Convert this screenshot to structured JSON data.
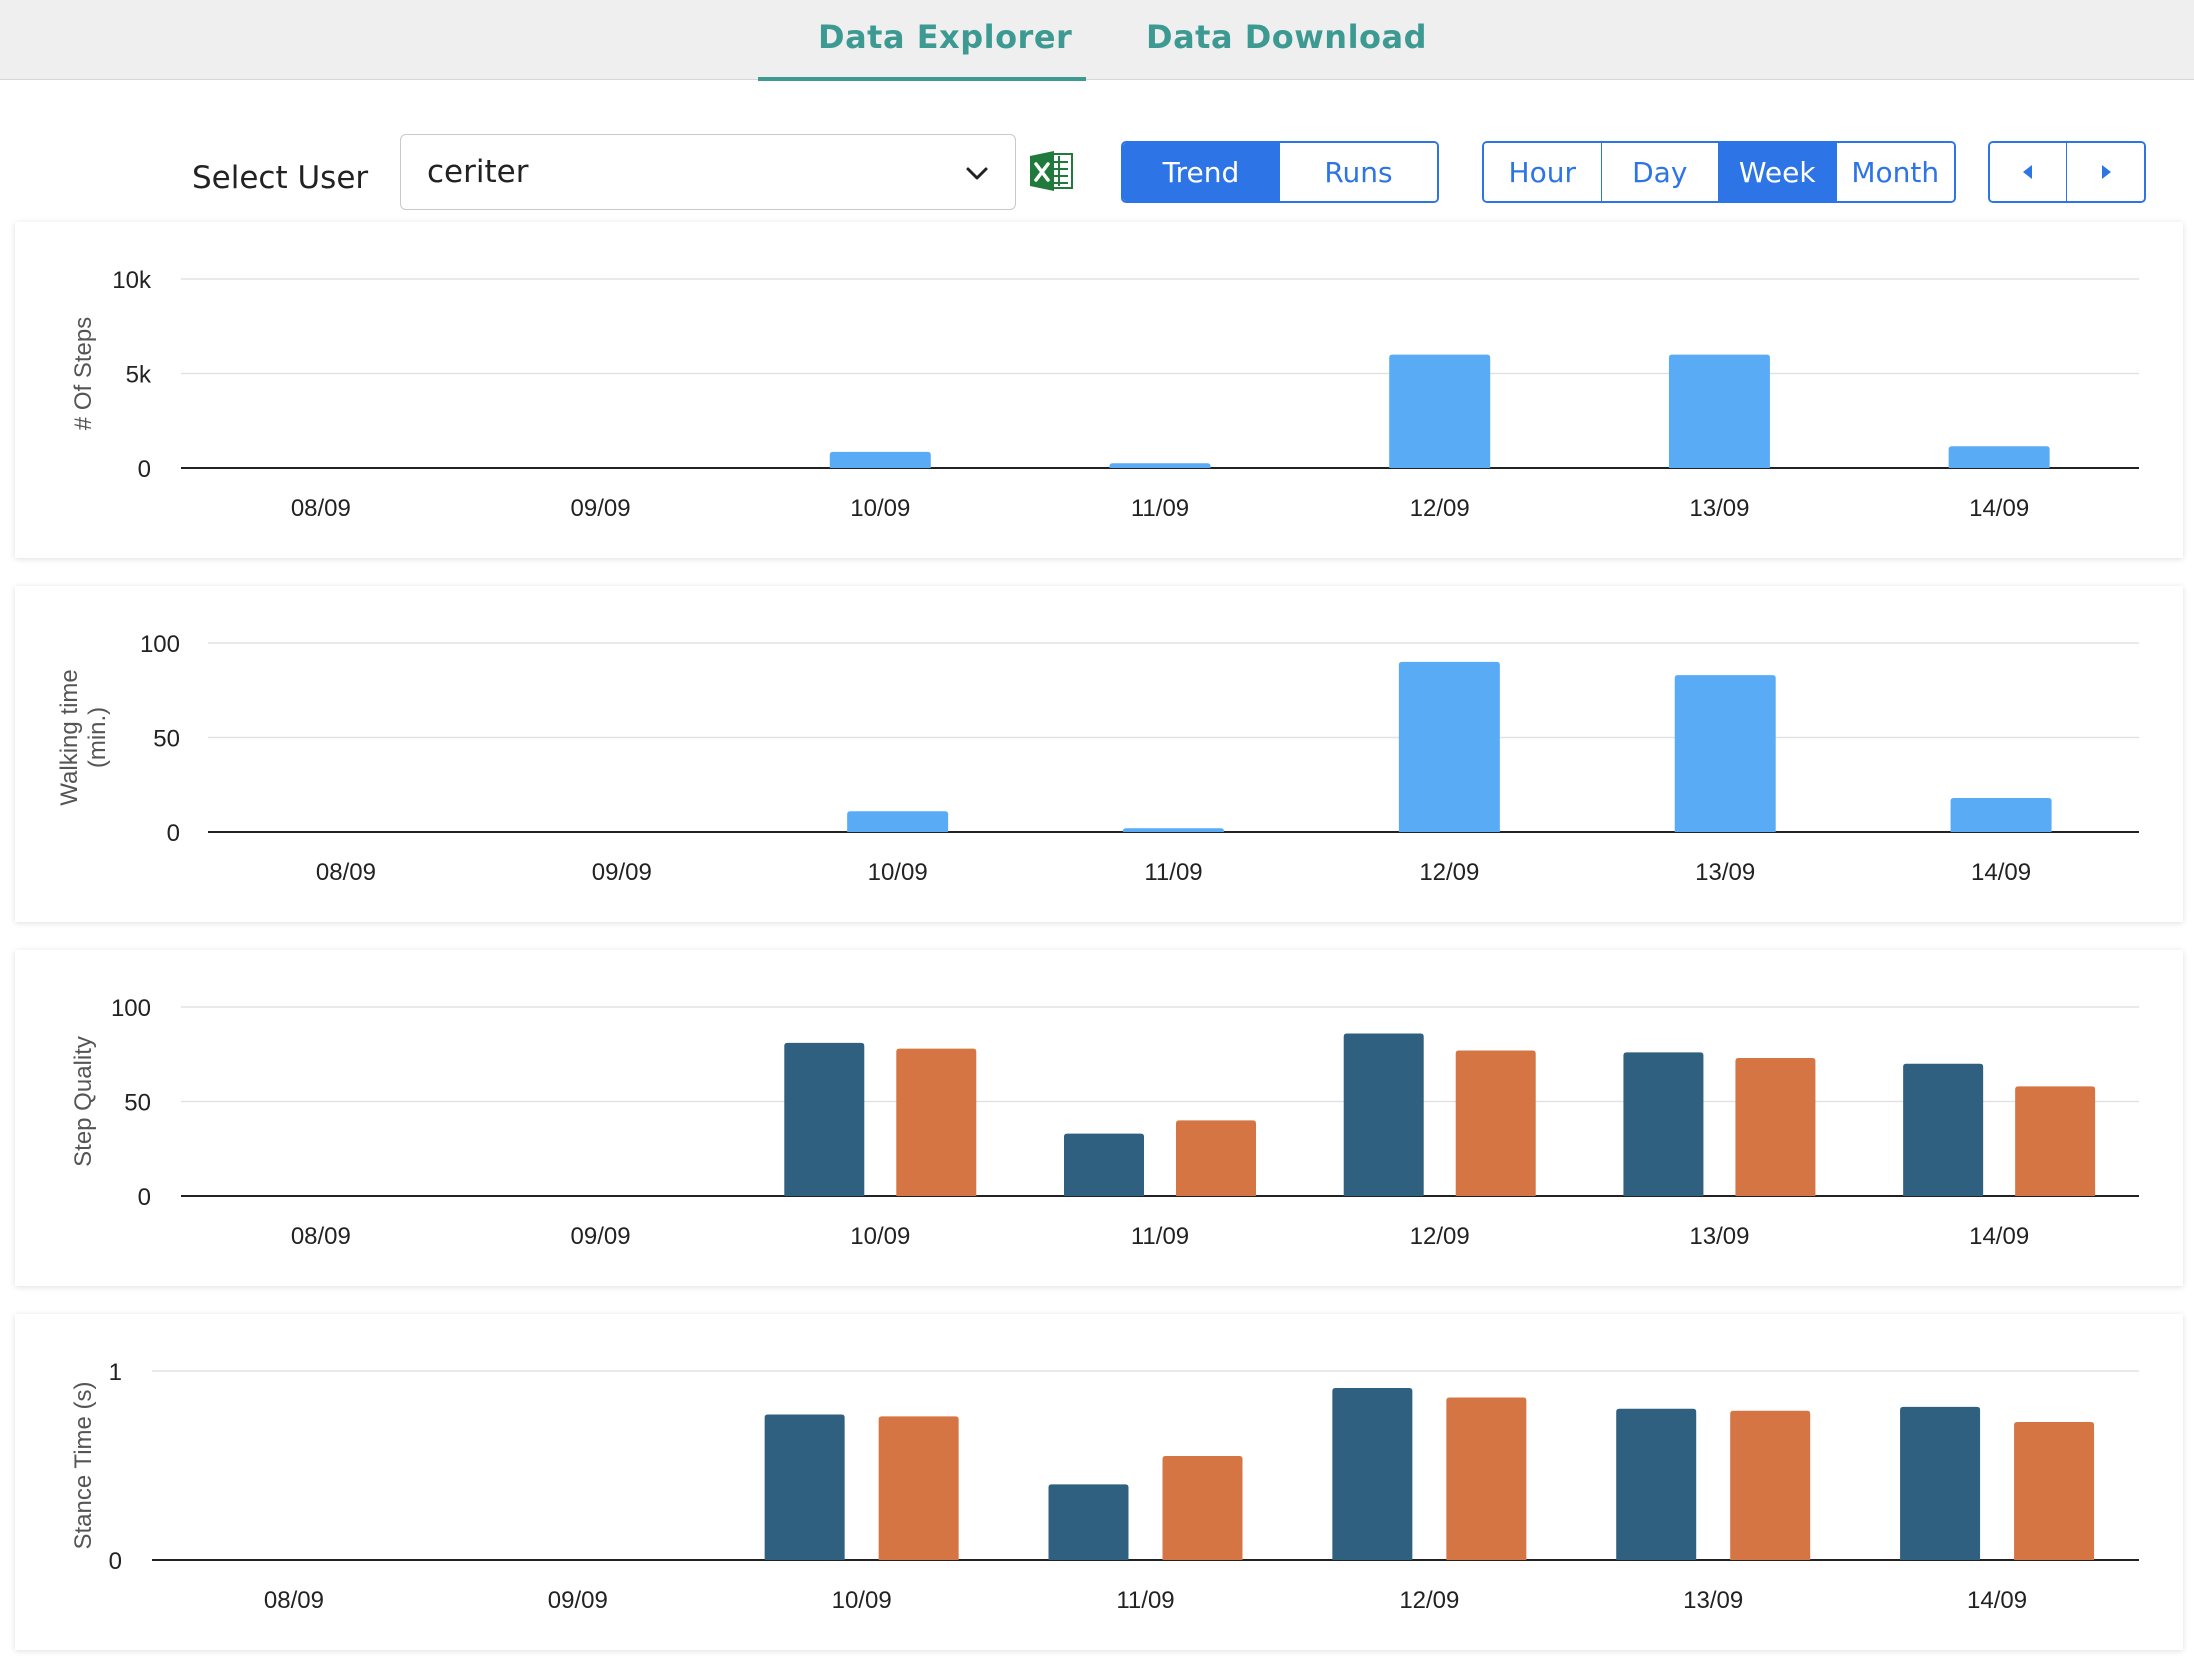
{
  "tabs": [
    {
      "label": "Data Explorer",
      "active": true
    },
    {
      "label": "Data Download",
      "active": false
    }
  ],
  "controls": {
    "select_user_label": "Select User",
    "selected_user": "ceriter",
    "mode_buttons": [
      {
        "label": "Trend",
        "active": true
      },
      {
        "label": "Runs",
        "active": false
      }
    ],
    "period_buttons": [
      {
        "label": "Hour",
        "active": false
      },
      {
        "label": "Day",
        "active": false
      },
      {
        "label": "Week",
        "active": true
      },
      {
        "label": "Month",
        "active": false
      }
    ]
  },
  "colors": {
    "accent": "#2d74e6",
    "tab": "#3d9a92",
    "bar_light": "#5aabf5",
    "bar_dark": "#30607f",
    "bar_orange": "#d57544"
  },
  "chart_data": [
    {
      "type": "bar",
      "ylabel": [
        "# Of Steps"
      ],
      "categories": [
        "08/09",
        "09/09",
        "10/09",
        "11/09",
        "12/09",
        "13/09",
        "14/09"
      ],
      "yticks": [
        {
          "value": 0,
          "label": "0"
        },
        {
          "value": 5000,
          "label": "5k"
        },
        {
          "value": 10000,
          "label": "10k"
        }
      ],
      "ylim": [
        0,
        10000
      ],
      "series": [
        {
          "values": [
            0,
            0,
            850,
            250,
            6000,
            6000,
            1150
          ],
          "color": "#5aabf5"
        }
      ]
    },
    {
      "type": "bar",
      "ylabel": [
        "Walking time",
        "(min.)"
      ],
      "categories": [
        "08/09",
        "09/09",
        "10/09",
        "11/09",
        "12/09",
        "13/09",
        "14/09"
      ],
      "yticks": [
        {
          "value": 0,
          "label": "0"
        },
        {
          "value": 50,
          "label": "50"
        },
        {
          "value": 100,
          "label": "100"
        }
      ],
      "ylim": [
        0,
        100
      ],
      "series": [
        {
          "values": [
            0,
            0,
            11,
            2,
            90,
            83,
            18
          ],
          "color": "#5aabf5"
        }
      ]
    },
    {
      "type": "bar",
      "ylabel": [
        "Step Quality"
      ],
      "categories": [
        "08/09",
        "09/09",
        "10/09",
        "11/09",
        "12/09",
        "13/09",
        "14/09"
      ],
      "yticks": [
        {
          "value": 0,
          "label": "0"
        },
        {
          "value": 50,
          "label": "50"
        },
        {
          "value": 100,
          "label": "100"
        }
      ],
      "ylim": [
        0,
        100
      ],
      "series": [
        {
          "values": [
            0,
            0,
            81,
            33,
            86,
            76,
            70
          ],
          "color": "#30607f"
        },
        {
          "values": [
            0,
            0,
            78,
            40,
            77,
            73,
            58
          ],
          "color": "#d57544"
        }
      ]
    },
    {
      "type": "bar",
      "ylabel": [
        "Stance Time (s)"
      ],
      "categories": [
        "08/09",
        "09/09",
        "10/09",
        "11/09",
        "12/09",
        "13/09",
        "14/09"
      ],
      "yticks": [
        {
          "value": 0,
          "label": "0"
        },
        {
          "value": 1,
          "label": "1"
        }
      ],
      "ylim": [
        0,
        1
      ],
      "series": [
        {
          "values": [
            0,
            0,
            0.77,
            0.4,
            0.91,
            0.8,
            0.81
          ],
          "color": "#30607f"
        },
        {
          "values": [
            0,
            0,
            0.76,
            0.55,
            0.86,
            0.79,
            0.73
          ],
          "color": "#d57544"
        }
      ]
    }
  ]
}
